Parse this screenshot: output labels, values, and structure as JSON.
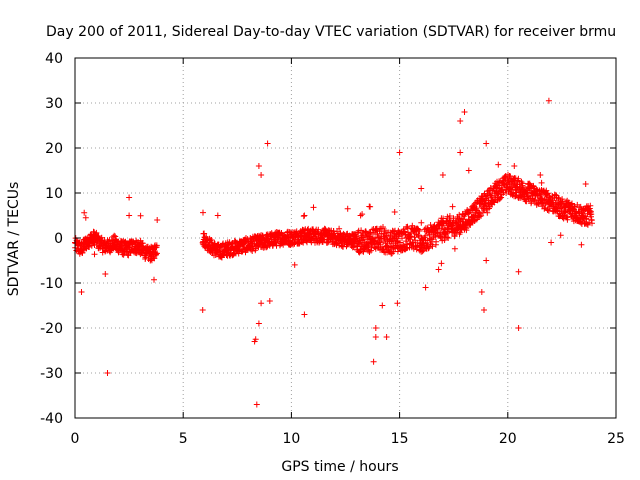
{
  "chart_data": {
    "type": "scatter",
    "title": "Day 200 of 2011, Sidereal Day-to-day VTEC variation (SDTVAR) for receiver brmu",
    "xlabel": "GPS time / hours",
    "ylabel": "SDTVAR / TECUs",
    "xlim": [
      0,
      25
    ],
    "ylim": [
      -40,
      40
    ],
    "x_ticks": [
      0,
      5,
      10,
      15,
      20,
      25
    ],
    "y_ticks": [
      -40,
      -30,
      -20,
      -10,
      0,
      10,
      20,
      30,
      40
    ],
    "x_tick_labels": [
      "0",
      "5",
      "10",
      "15",
      "20",
      "25"
    ],
    "y_tick_labels": [
      "-40",
      "-30",
      "-20",
      "-10",
      "0",
      "10",
      "20",
      "30",
      "40"
    ],
    "grid": true,
    "marker": "+",
    "color": "#ff0000",
    "series": [
      {
        "name": "SDTVAR",
        "trend": [
          [
            0.0,
            -1.5
          ],
          [
            0.3,
            -2.5
          ],
          [
            0.6,
            -0.5
          ],
          [
            0.9,
            0.0
          ],
          [
            1.2,
            -1.5
          ],
          [
            1.5,
            -2.0
          ],
          [
            1.8,
            -1.0
          ],
          [
            2.1,
            -2.0
          ],
          [
            2.4,
            -2.5
          ],
          [
            2.7,
            -1.8
          ],
          [
            3.0,
            -2.0
          ],
          [
            3.3,
            -3.5
          ],
          [
            3.6,
            -3.5
          ],
          [
            3.8,
            -2.0
          ],
          [
            5.9,
            0.0
          ],
          [
            6.2,
            -1.5
          ],
          [
            6.6,
            -3.0
          ],
          [
            7.0,
            -2.5
          ],
          [
            7.5,
            -2.0
          ],
          [
            8.0,
            -1.5
          ],
          [
            8.5,
            -1.0
          ],
          [
            9.0,
            -0.5
          ],
          [
            9.5,
            0.0
          ],
          [
            10.0,
            0.0
          ],
          [
            10.5,
            0.5
          ],
          [
            11.0,
            0.5
          ],
          [
            11.5,
            0.5
          ],
          [
            12.0,
            0.0
          ],
          [
            12.5,
            -0.5
          ],
          [
            13.0,
            -0.5
          ],
          [
            13.5,
            -1.0
          ],
          [
            14.0,
            0.0
          ],
          [
            14.5,
            -1.0
          ],
          [
            15.0,
            -0.5
          ],
          [
            15.5,
            0.5
          ],
          [
            16.0,
            -1.0
          ],
          [
            16.5,
            0.5
          ],
          [
            17.0,
            2.0
          ],
          [
            17.5,
            2.5
          ],
          [
            18.0,
            3.5
          ],
          [
            18.5,
            6.0
          ],
          [
            19.0,
            8.0
          ],
          [
            19.5,
            10.5
          ],
          [
            20.0,
            12.0
          ],
          [
            20.5,
            11.0
          ],
          [
            21.0,
            10.0
          ],
          [
            21.5,
            9.0
          ],
          [
            22.0,
            8.0
          ],
          [
            22.5,
            6.5
          ],
          [
            23.0,
            6.0
          ],
          [
            23.5,
            5.0
          ],
          [
            23.9,
            5.0
          ]
        ],
        "outliers": [
          [
            0.3,
            -12
          ],
          [
            0.5,
            4.5
          ],
          [
            1.4,
            -8
          ],
          [
            1.5,
            -30
          ],
          [
            2.5,
            9
          ],
          [
            2.5,
            5
          ],
          [
            3.8,
            4
          ],
          [
            5.9,
            -16
          ],
          [
            6.6,
            5
          ],
          [
            8.3,
            -23
          ],
          [
            8.35,
            -22.5
          ],
          [
            8.4,
            -37
          ],
          [
            8.5,
            -19
          ],
          [
            8.6,
            -14.5
          ],
          [
            8.5,
            16
          ],
          [
            8.6,
            14
          ],
          [
            8.9,
            21
          ],
          [
            9.0,
            -14
          ],
          [
            10.6,
            -17
          ],
          [
            10.6,
            5
          ],
          [
            12.6,
            6.5
          ],
          [
            13.2,
            5
          ],
          [
            13.6,
            7
          ],
          [
            13.9,
            -20
          ],
          [
            13.9,
            -22
          ],
          [
            13.8,
            -27.5
          ],
          [
            14.2,
            -15
          ],
          [
            14.4,
            -22
          ],
          [
            14.9,
            -14.5
          ],
          [
            15.0,
            19
          ],
          [
            16.0,
            11
          ],
          [
            16.2,
            -11
          ],
          [
            16.8,
            -7
          ],
          [
            17.0,
            14
          ],
          [
            17.8,
            26
          ],
          [
            18.0,
            28
          ],
          [
            17.8,
            19
          ],
          [
            18.2,
            15
          ],
          [
            18.8,
            -12
          ],
          [
            18.9,
            -16
          ],
          [
            19.0,
            -5
          ],
          [
            19.0,
            21
          ],
          [
            20.5,
            -20
          ],
          [
            20.5,
            -7.5
          ],
          [
            20.3,
            16
          ],
          [
            21.5,
            14
          ],
          [
            21.9,
            30.5
          ],
          [
            22.0,
            -1
          ],
          [
            23.4,
            -1.5
          ],
          [
            23.6,
            12
          ]
        ]
      }
    ]
  }
}
